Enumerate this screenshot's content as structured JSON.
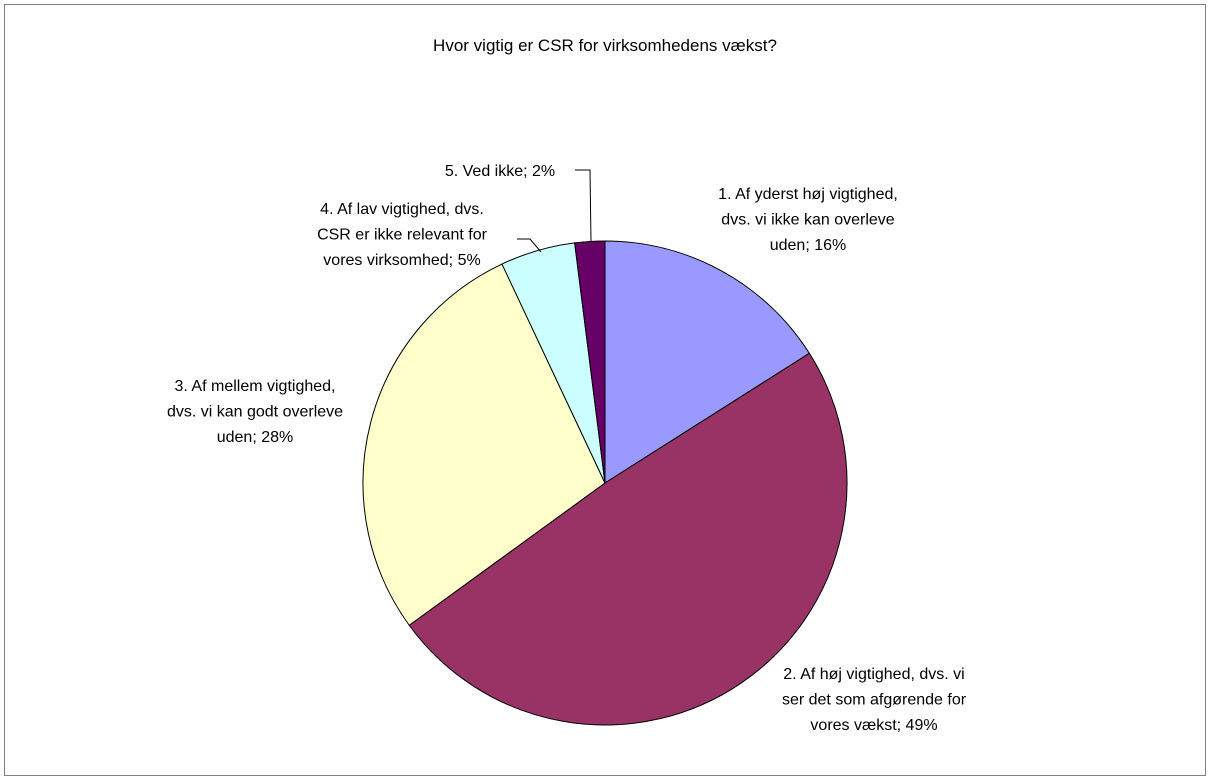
{
  "chart_data": {
    "type": "pie",
    "title": "Hvor vigtig er CSR for virksomhedens vækst?",
    "values": [
      16,
      49,
      28,
      5,
      2
    ],
    "value_labels": [
      [
        "1. Af yderst høj vigtighed,",
        "dvs. vi ikke kan overleve",
        "uden; 16%"
      ],
      [
        "2. Af høj vigtighed, dvs. vi",
        "ser det som afgørende for",
        "vores vækst; 49%"
      ],
      [
        "3. Af mellem vigtighed,",
        "dvs. vi kan godt overleve",
        "uden; 28%"
      ],
      [
        "4. Af lav vigtighed, dvs.",
        "CSR er ikke relevant for",
        "vores virksomhed; 5%"
      ],
      [
        "5. Ved ikke; 2%"
      ]
    ],
    "colors": [
      "#9999ff",
      "#993366",
      "#ffffcc",
      "#ccffff",
      "#660066"
    ]
  }
}
